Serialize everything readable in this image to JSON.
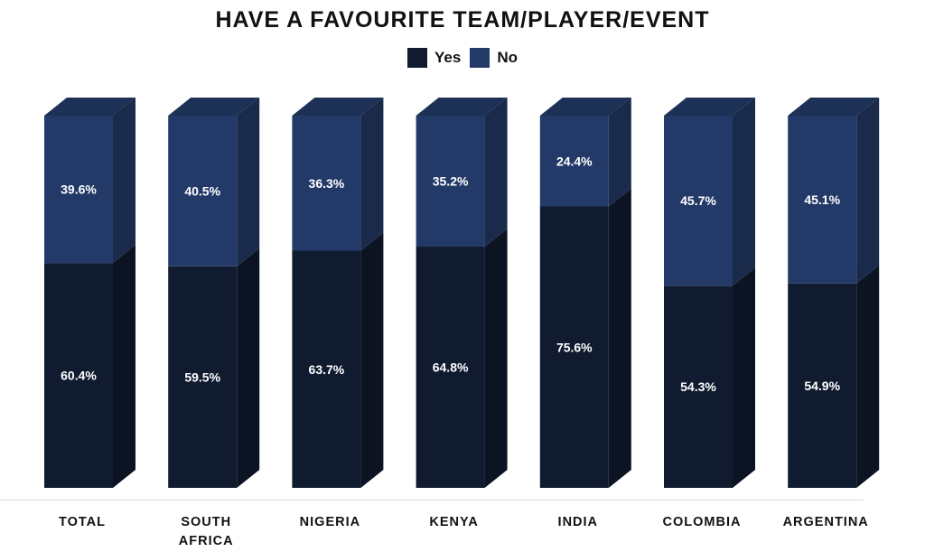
{
  "chart_data": {
    "type": "bar",
    "stacked": true,
    "title": "HAVE A FAVOURITE TEAM/PLAYER/EVENT",
    "categories": [
      "TOTAL",
      "SOUTH AFRICA",
      "NIGERIA",
      "KENYA",
      "INDIA",
      "COLOMBIA",
      "ARGENTINA"
    ],
    "series": [
      {
        "name": "Yes",
        "color": "#101b30",
        "values": [
          60.4,
          59.5,
          63.7,
          64.8,
          75.6,
          54.3,
          54.9
        ],
        "labels": [
          "60.4%",
          "59.5%",
          "63.7%",
          "64.8%",
          "75.6%",
          "54.3%",
          "54.9%"
        ]
      },
      {
        "name": "No",
        "color": "#233a68",
        "values": [
          39.6,
          40.5,
          36.3,
          35.2,
          24.4,
          45.7,
          45.1
        ],
        "labels": [
          "39.6%",
          "40.5%",
          "36.3%",
          "35.2%",
          "24.4%",
          "45.7%",
          "45.1%"
        ]
      }
    ],
    "ylim": [
      0,
      100
    ],
    "legend_position": "top-center",
    "grid": false,
    "style": "3d-columns"
  }
}
